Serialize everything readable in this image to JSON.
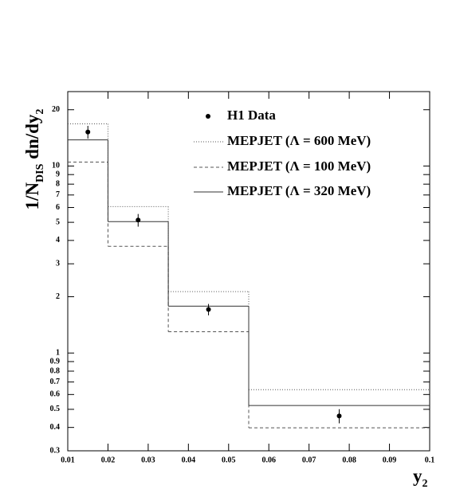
{
  "chart_data": {
    "type": "histogram",
    "ylabel": [
      "1/N",
      "DIS",
      " dn/dy",
      "2"
    ],
    "xlabel": [
      "y",
      "2"
    ],
    "bins": [
      0.01,
      0.02,
      0.035,
      0.055,
      0.1
    ],
    "series": [
      {
        "name": "MEPJET (Λ = 600 MeV)",
        "color": "#555555",
        "style": "dotted",
        "values": [
          16.8,
          6.07,
          2.13,
          0.637
        ]
      },
      {
        "name": "MEPJET (Λ = 100 MeV)",
        "color": "#555555",
        "style": "dashed",
        "values": [
          10.5,
          3.72,
          1.3,
          0.398
        ]
      },
      {
        "name": "MEPJET (Λ = 320 MeV)",
        "color": "#333333",
        "style": "solid",
        "values": [
          13.8,
          5.04,
          1.78,
          0.524
        ]
      }
    ],
    "points": {
      "name": "H1 Data",
      "color": "#000000",
      "x": [
        0.015,
        0.0275,
        0.045,
        0.0775
      ],
      "values": [
        15.2,
        5.14,
        1.71,
        0.461
      ],
      "errors": [
        1.2,
        0.4,
        0.12,
        0.04
      ]
    },
    "xlim": [
      0.01,
      0.1
    ],
    "xticks": [
      0.01,
      0.02,
      0.03,
      0.04,
      0.05,
      0.06,
      0.07,
      0.08,
      0.09,
      0.1
    ],
    "ylim": [
      0.3,
      25
    ],
    "log_y": true,
    "yticks": [
      0.3,
      0.4,
      0.5,
      0.6,
      0.7,
      0.8,
      0.9,
      1,
      2,
      3,
      4,
      5,
      6,
      7,
      8,
      9,
      10,
      20
    ]
  }
}
